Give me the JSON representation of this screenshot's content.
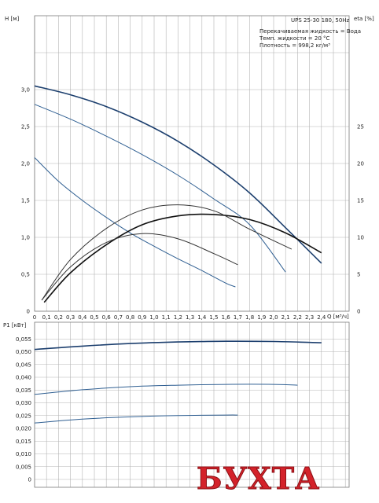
{
  "chart_data": [
    {
      "type": "line",
      "panel": "pump-curves",
      "xlabel": "Q [м³/ч]",
      "ylabel": "H [м]",
      "y2label": "eta [%]",
      "xlim": [
        0,
        2.6
      ],
      "ylim": [
        0,
        3.5
      ],
      "y2lim": [
        0,
        35
      ],
      "x_ticks": [
        "0",
        "0,1",
        "0,2",
        "0,3",
        "0,4",
        "0,5",
        "0,6",
        "0,7",
        "0,8",
        "0,9",
        "1,0",
        "1,1",
        "1,2",
        "1,3",
        "1,4",
        "1,5",
        "1,6",
        "1,7",
        "1,8",
        "1,9",
        "2,0",
        "2,1",
        "2,2",
        "2,3",
        "2,4"
      ],
      "y_ticks": [
        "0",
        "0,5",
        "1,0",
        "1,5",
        "2,0",
        "2,5",
        "3,0"
      ],
      "y2_ticks": [
        "0",
        "5",
        "10",
        "15",
        "20",
        "25"
      ],
      "grid": true,
      "info": [
        "UPS 25-30 180, 50Hz",
        "Перекачиваемая жидкость = Вода",
        "Темп. жидкости = 20 °C",
        "Плотность = 998,2 кг/м³"
      ],
      "series": [
        {
          "kind": "head",
          "axis": "left",
          "color": "#1c3f6e",
          "x": [
            0,
            0.3,
            0.6,
            0.9,
            1.2,
            1.5,
            1.8,
            2.1,
            2.4
          ],
          "y": [
            3.05,
            2.93,
            2.77,
            2.56,
            2.3,
            1.98,
            1.6,
            1.13,
            0.65
          ]
        },
        {
          "kind": "head",
          "axis": "left",
          "color": "#2f5f92",
          "x": [
            0,
            0.3,
            0.6,
            0.9,
            1.2,
            1.5,
            1.8,
            2.1
          ],
          "y": [
            2.8,
            2.6,
            2.37,
            2.12,
            1.84,
            1.52,
            1.17,
            0.53
          ]
        },
        {
          "kind": "head",
          "axis": "left",
          "color": "#2f5f92",
          "x": [
            0,
            0.2,
            0.4,
            0.6,
            0.8,
            1.0,
            1.2,
            1.4,
            1.6,
            1.68
          ],
          "y": [
            2.08,
            1.76,
            1.5,
            1.27,
            1.06,
            0.88,
            0.71,
            0.55,
            0.38,
            0.33
          ]
        },
        {
          "kind": "eta",
          "axis": "right",
          "color": "#111111",
          "x": [
            0.08,
            0.3,
            0.6,
            0.9,
            1.2,
            1.5,
            1.8,
            2.1,
            2.4
          ],
          "y": [
            1.2,
            5.2,
            9.0,
            11.7,
            12.9,
            13.1,
            12.4,
            10.6,
            7.9
          ]
        },
        {
          "kind": "eta",
          "axis": "right",
          "color": "#333333",
          "x": [
            0.06,
            0.3,
            0.6,
            0.9,
            1.2,
            1.5,
            1.8,
            2.15
          ],
          "y": [
            1.5,
            7.0,
            11.2,
            13.7,
            14.4,
            13.6,
            11.1,
            8.4
          ]
        },
        {
          "kind": "eta",
          "axis": "right",
          "color": "#333333",
          "x": [
            0.06,
            0.3,
            0.6,
            0.9,
            1.2,
            1.5,
            1.7
          ],
          "y": [
            1.5,
            6.0,
            9.3,
            10.5,
            9.8,
            7.8,
            6.3
          ]
        }
      ]
    },
    {
      "type": "line",
      "panel": "power-curves",
      "ylabel": "P1 [кВт]",
      "xlim": [
        0,
        2.6
      ],
      "ylim": [
        0,
        0.06
      ],
      "y_ticks": [
        "0",
        "0,005",
        "0,010",
        "0,015",
        "0,020",
        "0,025",
        "0,030",
        "0,035",
        "0,040",
        "0,045",
        "0,050",
        "0,055"
      ],
      "grid": true,
      "series": [
        {
          "kind": "power",
          "color": "#1c3f6e",
          "x": [
            0,
            0.4,
            0.8,
            1.2,
            1.6,
            2.0,
            2.4
          ],
          "y": [
            0.0509,
            0.0522,
            0.0532,
            0.0538,
            0.0541,
            0.054,
            0.0535
          ]
        },
        {
          "kind": "power",
          "color": "#2f5f92",
          "x": [
            0,
            0.4,
            0.8,
            1.2,
            1.6,
            2.0,
            2.2
          ],
          "y": [
            0.0333,
            0.0351,
            0.0363,
            0.0369,
            0.0372,
            0.0372,
            0.0369
          ]
        },
        {
          "kind": "power",
          "color": "#2f5f92",
          "x": [
            0,
            0.4,
            0.8,
            1.2,
            1.6,
            1.7
          ],
          "y": [
            0.0221,
            0.0236,
            0.0245,
            0.025,
            0.0252,
            0.0252
          ]
        }
      ]
    }
  ],
  "watermark": "БУХТА",
  "colors": {
    "watermark": "#d4222a"
  }
}
